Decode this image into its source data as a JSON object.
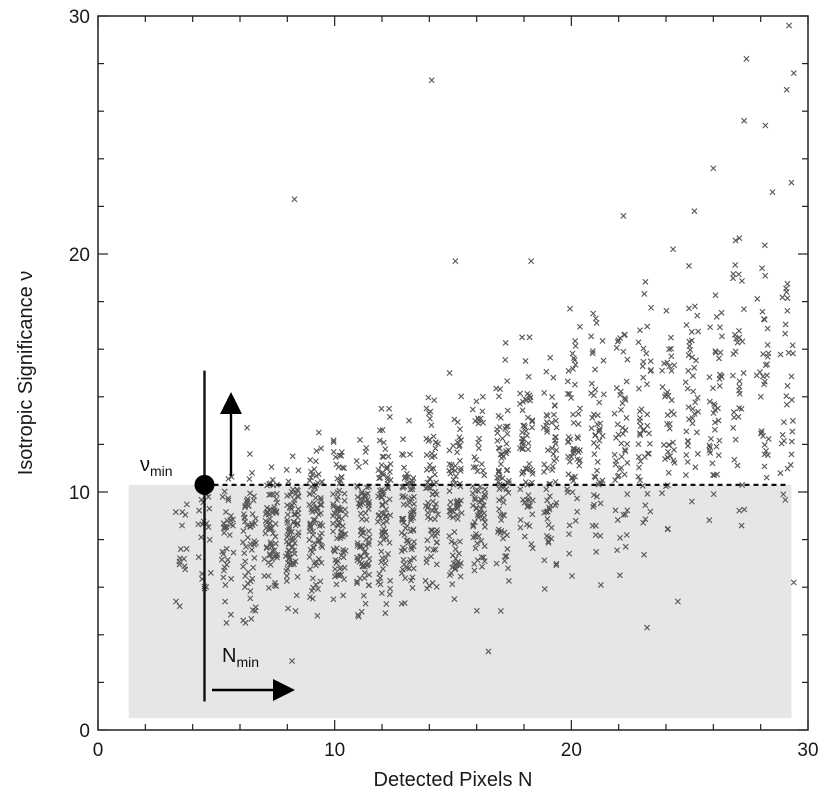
{
  "chart_data": {
    "type": "scatter",
    "xlabel": "Detected Pixels N",
    "ylabel": "Isotropic Significance ν",
    "xlim": [
      0,
      30
    ],
    "ylim": [
      0,
      30
    ],
    "xticks": [
      "0",
      "10",
      "20",
      "30"
    ],
    "yticks": [
      "0",
      "10",
      "20",
      "30"
    ],
    "grid": false,
    "marker": "x",
    "marker_color": "#555555",
    "shaded_region_color": "#e6e6e6",
    "threshold": {
      "nu_min": 10.3,
      "n_min": 4.5,
      "nu_label": "ν",
      "nu_label_sub": "min",
      "n_label": "N",
      "n_label_sub": "min"
    },
    "outliers": [
      {
        "x": 8.3,
        "y": 22.3
      },
      {
        "x": 14.1,
        "y": 27.3
      },
      {
        "x": 15.1,
        "y": 19.7
      },
      {
        "x": 18.3,
        "y": 19.7
      },
      {
        "x": 26.0,
        "y": 23.6
      },
      {
        "x": 27.4,
        "y": 28.2
      },
      {
        "x": 27.3,
        "y": 25.6
      },
      {
        "x": 28.2,
        "y": 25.4
      },
      {
        "x": 29.2,
        "y": 29.6
      },
      {
        "x": 29.4,
        "y": 27.6
      },
      {
        "x": 29.1,
        "y": 26.9
      },
      {
        "x": 29.3,
        "y": 23.0
      },
      {
        "x": 28.5,
        "y": 22.6
      },
      {
        "x": 22.2,
        "y": 21.6
      },
      {
        "x": 24.3,
        "y": 20.2
      },
      {
        "x": 25.2,
        "y": 21.8
      },
      {
        "x": 8.2,
        "y": 2.9
      },
      {
        "x": 16.5,
        "y": 3.3
      },
      {
        "x": 23.2,
        "y": 4.3
      },
      {
        "x": 3.3,
        "y": 5.4
      },
      {
        "x": 6.3,
        "y": 12.7
      },
      {
        "x": 24.5,
        "y": 5.4
      },
      {
        "x": 29.4,
        "y": 6.2
      }
    ],
    "column_clusters": [
      {
        "x": 3.5,
        "n": 14,
        "ymin": 5.0,
        "ymax": 10.5
      },
      {
        "x": 4.5,
        "n": 22,
        "ymin": 5.0,
        "ymax": 10.8
      },
      {
        "x": 5.5,
        "n": 35,
        "ymin": 4.5,
        "ymax": 11.5
      },
      {
        "x": 6.4,
        "n": 55,
        "ymin": 4.5,
        "ymax": 12.0
      },
      {
        "x": 7.3,
        "n": 65,
        "ymin": 4.8,
        "ymax": 11.5
      },
      {
        "x": 8.2,
        "n": 75,
        "ymin": 5.0,
        "ymax": 11.5
      },
      {
        "x": 9.2,
        "n": 80,
        "ymin": 4.8,
        "ymax": 12.5
      },
      {
        "x": 10.2,
        "n": 80,
        "ymin": 5.0,
        "ymax": 12.5
      },
      {
        "x": 11.2,
        "n": 80,
        "ymin": 4.5,
        "ymax": 12.5
      },
      {
        "x": 12.1,
        "n": 80,
        "ymin": 4.5,
        "ymax": 13.5
      },
      {
        "x": 13.1,
        "n": 80,
        "ymin": 5.0,
        "ymax": 13.0
      },
      {
        "x": 14.1,
        "n": 75,
        "ymin": 5.0,
        "ymax": 14.5
      },
      {
        "x": 15.1,
        "n": 75,
        "ymin": 5.5,
        "ymax": 15.0
      },
      {
        "x": 16.1,
        "n": 70,
        "ymin": 5.0,
        "ymax": 15.5
      },
      {
        "x": 17.1,
        "n": 70,
        "ymin": 5.0,
        "ymax": 16.5
      },
      {
        "x": 18.1,
        "n": 65,
        "ymin": 5.5,
        "ymax": 16.5
      },
      {
        "x": 19.1,
        "n": 60,
        "ymin": 5.5,
        "ymax": 16.0
      },
      {
        "x": 20.1,
        "n": 55,
        "ymin": 6.0,
        "ymax": 18.0
      },
      {
        "x": 21.1,
        "n": 50,
        "ymin": 6.0,
        "ymax": 17.5
      },
      {
        "x": 22.1,
        "n": 50,
        "ymin": 6.5,
        "ymax": 19.0
      },
      {
        "x": 23.1,
        "n": 45,
        "ymin": 7.0,
        "ymax": 19.5
      },
      {
        "x": 24.1,
        "n": 40,
        "ymin": 7.5,
        "ymax": 19.0
      },
      {
        "x": 25.1,
        "n": 40,
        "ymin": 8.0,
        "ymax": 19.5
      },
      {
        "x": 26.1,
        "n": 40,
        "ymin": 8.0,
        "ymax": 19.5
      },
      {
        "x": 27.1,
        "n": 35,
        "ymin": 8.5,
        "ymax": 21.0
      },
      {
        "x": 28.1,
        "n": 32,
        "ymin": 8.5,
        "ymax": 21.0
      },
      {
        "x": 29.1,
        "n": 30,
        "ymin": 9.0,
        "ymax": 20.5
      }
    ]
  }
}
